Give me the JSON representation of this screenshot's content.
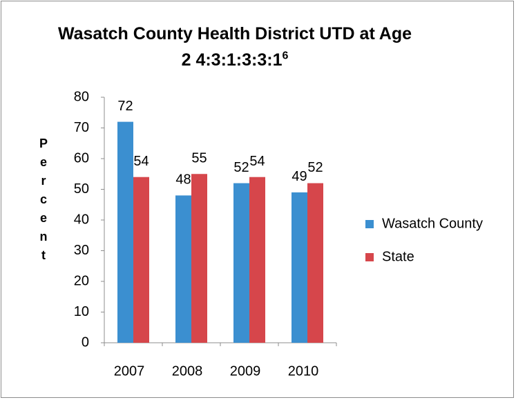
{
  "chart_data": {
    "type": "bar",
    "title": "Wasatch County Health District UTD at Age 2 4:3:1:3:3:1",
    "title_superscript": "6",
    "ylabel": "Percent",
    "categories": [
      "2007",
      "2008",
      "2009",
      "2010"
    ],
    "series": [
      {
        "name": "Wasatch County",
        "color": "#3b8fd0",
        "values": [
          72,
          48,
          52,
          49
        ]
      },
      {
        "name": "State",
        "color": "#d6464b",
        "values": [
          54,
          55,
          54,
          52
        ]
      }
    ],
    "ylim": [
      0,
      80
    ],
    "yticks": [
      0,
      10,
      20,
      30,
      40,
      50,
      60,
      70,
      80
    ],
    "grid": false,
    "legend": "right"
  }
}
